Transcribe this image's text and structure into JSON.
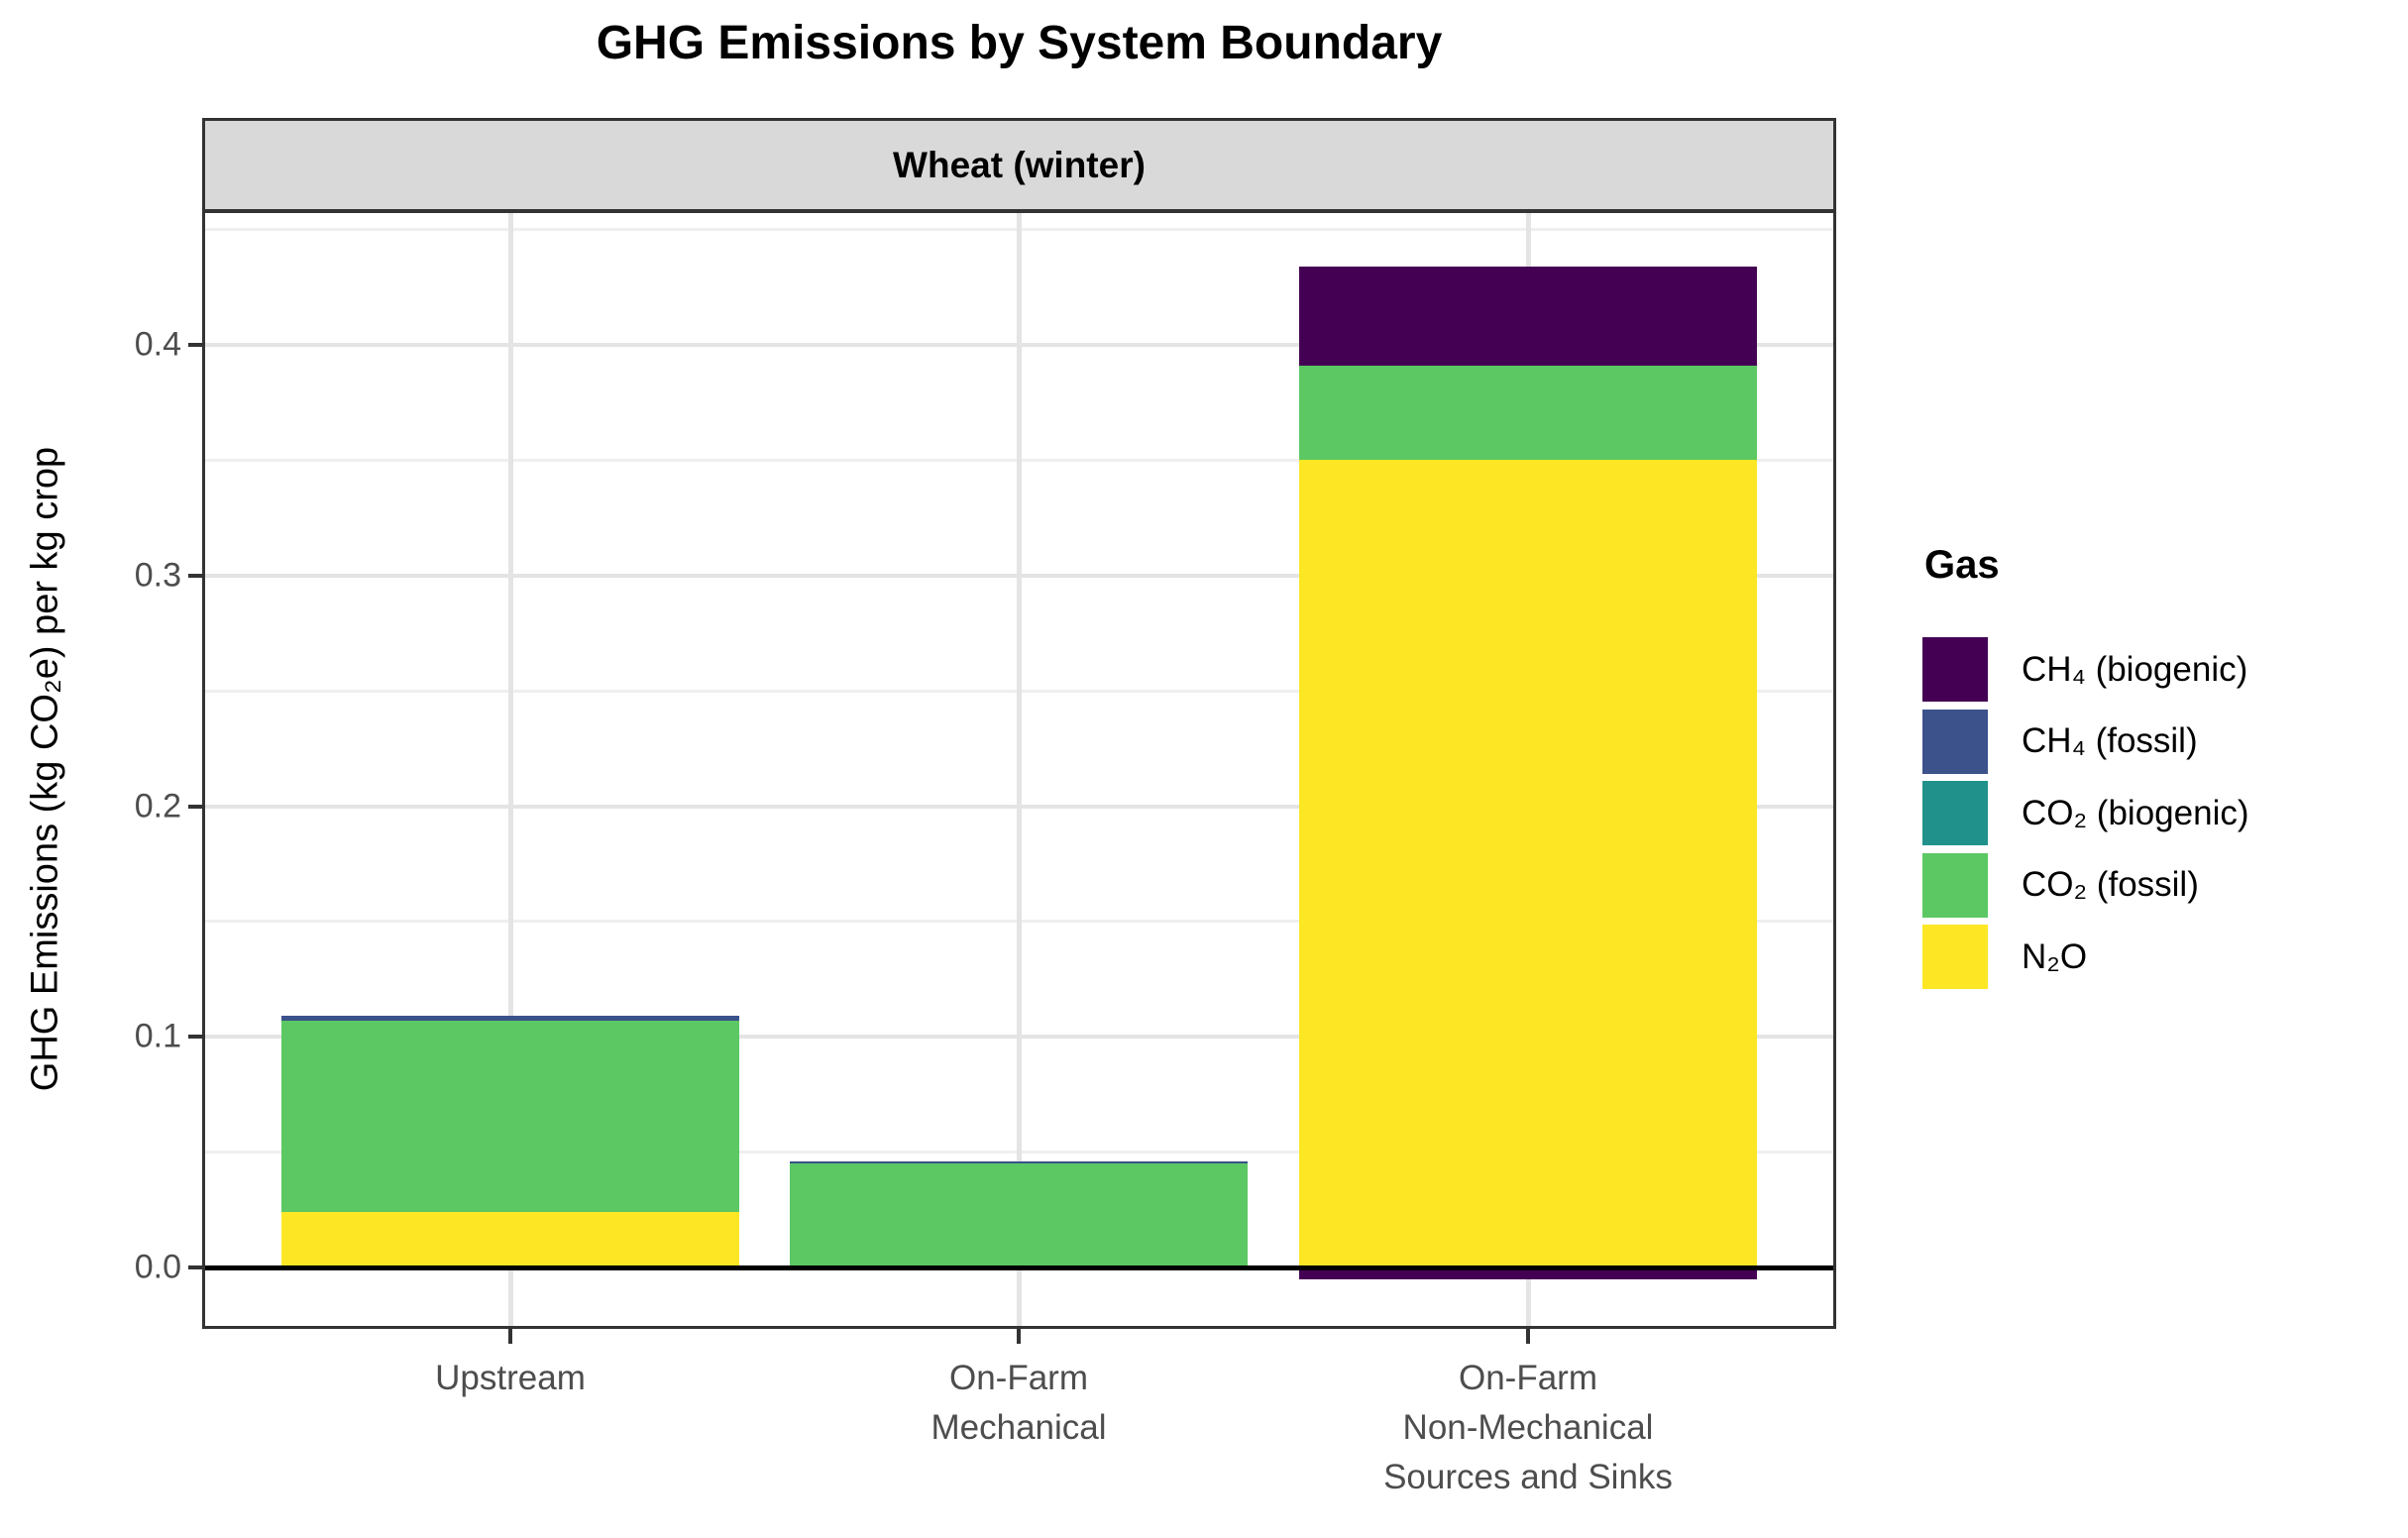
{
  "chart_data": {
    "type": "bar",
    "stacked": true,
    "title": "GHG Emissions by System Boundary",
    "facet_label": "Wheat (winter)",
    "xlabel": "",
    "ylabel": "GHG Emissions (kg CO₂e) per kg crop",
    "ylim": [
      -0.025,
      0.457
    ],
    "grid": "on",
    "legend_position": "right",
    "legend_title": "Gas",
    "yticks": [
      {
        "value": 0,
        "label": "0.0"
      },
      {
        "value": 0.1,
        "label": "0.1"
      },
      {
        "value": 0.2,
        "label": "0.2"
      },
      {
        "value": 0.3,
        "label": "0.3"
      },
      {
        "value": 0.4,
        "label": "0.4"
      }
    ],
    "minor_gridlines": [
      0.05,
      0.15,
      0.25,
      0.35,
      0.45
    ],
    "gases": [
      {
        "id": "ch4-biogenic",
        "label": "CH₄ (biogenic)",
        "color": "#440154"
      },
      {
        "id": "ch4-fossil",
        "label": "CH₄ (fossil)",
        "color": "#3B528B"
      },
      {
        "id": "co2-biogenic",
        "label": "CO₂ (biogenic)",
        "color": "#21918C"
      },
      {
        "id": "co2-fossil",
        "label": "CO₂ (fossil)",
        "color": "#5BC863"
      },
      {
        "id": "n2o",
        "label": "N₂O",
        "color": "#FDE725"
      }
    ],
    "categories": [
      {
        "id": "upstream",
        "label_lines": [
          "Upstream"
        ]
      },
      {
        "id": "on-farm-mechanical",
        "label_lines": [
          "On-Farm",
          "Mechanical"
        ]
      },
      {
        "id": "on-farm-non-mechanical",
        "label_lines": [
          "On-Farm",
          "Non-Mechanical",
          "Sources and Sinks"
        ]
      }
    ],
    "bars": [
      {
        "category": "upstream",
        "segments": [
          {
            "gas": "n2o",
            "value": 0.024
          },
          {
            "gas": "co2-fossil",
            "value": 0.083
          },
          {
            "gas": "ch4-fossil",
            "value": 0.002
          }
        ]
      },
      {
        "category": "on-farm-mechanical",
        "segments": [
          {
            "gas": "n2o",
            "value": 0.001
          },
          {
            "gas": "co2-fossil",
            "value": 0.044
          },
          {
            "gas": "ch4-fossil",
            "value": 0.001
          }
        ]
      },
      {
        "category": "on-farm-non-mechanical",
        "segments": [
          {
            "gas": "n2o",
            "value": 0.35
          },
          {
            "gas": "co2-fossil",
            "value": 0.041
          },
          {
            "gas": "ch4-biogenic",
            "value": 0.043
          },
          {
            "gas": "ch4-biogenic",
            "value": -0.005
          }
        ]
      },
      {
        "note": "zero_line",
        "zero_line": true
      }
    ]
  }
}
